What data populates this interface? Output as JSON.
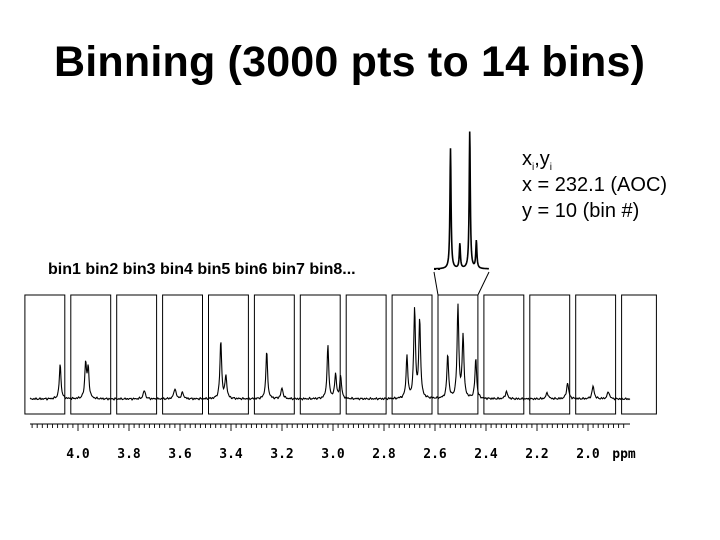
{
  "title": "Binning (3000 pts to 14 bins)",
  "annotation": {
    "x_var": "x",
    "x_sub": "i",
    "sep": ",",
    "y_var": "y",
    "y_sub": "i",
    "line_x": "x = 232.1 (AOC)",
    "line_y": "y = 10 (bin #)"
  },
  "bins_caption": "bin1 bin2 bin3 bin4 bin5 bin6 bin7 bin8...",
  "chart_data": {
    "type": "line",
    "xlabel": "ppm",
    "x_reversed": true,
    "xlim": [
      4.2,
      1.8
    ],
    "x_ticks": [
      "4.0",
      "3.8",
      "3.6",
      "3.4",
      "3.2",
      "3.0",
      "2.8",
      "2.6",
      "2.4",
      "2.2",
      "2.0"
    ],
    "bins": {
      "count": 14,
      "edges_ppm": [
        4.22,
        4.04,
        3.86,
        3.68,
        3.5,
        3.32,
        3.14,
        2.96,
        2.78,
        2.6,
        2.42,
        2.24,
        2.06,
        1.88,
        1.72
      ]
    },
    "peaks": [
      {
        "ppm": 4.07,
        "height": 0.33,
        "width": 0.004
      },
      {
        "ppm": 3.97,
        "height": 0.34,
        "width": 0.004
      },
      {
        "ppm": 3.96,
        "height": 0.28,
        "width": 0.004
      },
      {
        "ppm": 3.74,
        "height": 0.08,
        "width": 0.005
      },
      {
        "ppm": 3.62,
        "height": 0.1,
        "width": 0.005
      },
      {
        "ppm": 3.59,
        "height": 0.06,
        "width": 0.005
      },
      {
        "ppm": 3.44,
        "height": 0.55,
        "width": 0.004
      },
      {
        "ppm": 3.42,
        "height": 0.22,
        "width": 0.004
      },
      {
        "ppm": 3.26,
        "height": 0.45,
        "width": 0.004
      },
      {
        "ppm": 3.2,
        "height": 0.1,
        "width": 0.005
      },
      {
        "ppm": 3.02,
        "height": 0.5,
        "width": 0.004
      },
      {
        "ppm": 2.99,
        "height": 0.24,
        "width": 0.004
      },
      {
        "ppm": 2.97,
        "height": 0.22,
        "width": 0.004
      },
      {
        "ppm": 2.71,
        "height": 0.4,
        "width": 0.004
      },
      {
        "ppm": 2.68,
        "height": 0.85,
        "width": 0.004
      },
      {
        "ppm": 2.66,
        "height": 0.75,
        "width": 0.004
      },
      {
        "ppm": 2.55,
        "height": 0.42,
        "width": 0.004
      },
      {
        "ppm": 2.51,
        "height": 0.88,
        "width": 0.004
      },
      {
        "ppm": 2.49,
        "height": 0.6,
        "width": 0.004
      },
      {
        "ppm": 2.44,
        "height": 0.38,
        "width": 0.004
      },
      {
        "ppm": 2.32,
        "height": 0.07,
        "width": 0.005
      },
      {
        "ppm": 2.16,
        "height": 0.06,
        "width": 0.005
      },
      {
        "ppm": 2.08,
        "height": 0.15,
        "width": 0.005
      },
      {
        "ppm": 1.98,
        "height": 0.12,
        "width": 0.005
      },
      {
        "ppm": 1.92,
        "height": 0.07,
        "width": 0.005
      }
    ],
    "inset": {
      "source_bin": 10,
      "peaks": [
        {
          "pos": 0.3,
          "height": 0.83
        },
        {
          "pos": 0.47,
          "height": 0.17
        },
        {
          "pos": 0.65,
          "height": 0.95
        },
        {
          "pos": 0.77,
          "height": 0.19
        }
      ]
    }
  }
}
